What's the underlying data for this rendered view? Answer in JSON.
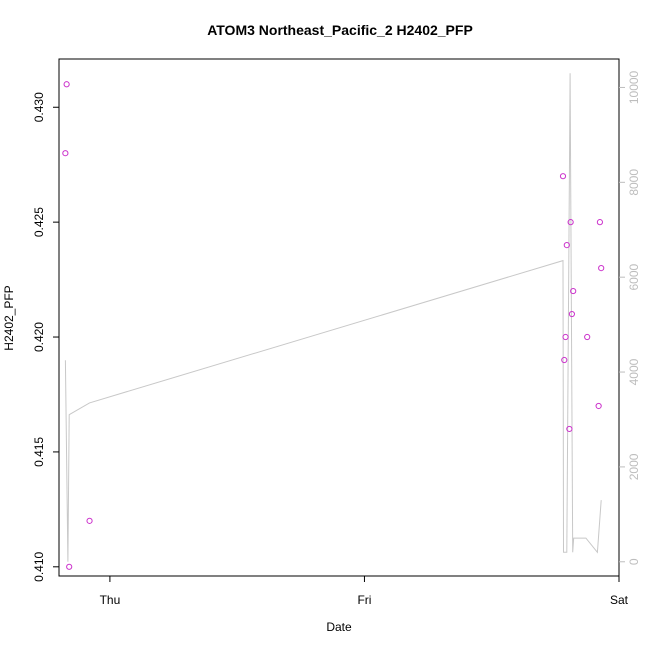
{
  "chart_data": {
    "type": "scatter",
    "title": "ATOM3 Northeast_Pacific_2 H2402_PFP",
    "xlabel": "Date",
    "ylabel": "H2402_PFP",
    "x_ticks": [
      "Thu",
      "Fri",
      "Sat"
    ],
    "x_range_days": [
      -0.2,
      2.0
    ],
    "ylim": [
      0.4096,
      0.4321
    ],
    "y_ticks": [
      0.41,
      0.415,
      0.42,
      0.425,
      0.43
    ],
    "y2lim": [
      -300,
      10600
    ],
    "y2_ticks": [
      0,
      2000,
      4000,
      6000,
      8000,
      10000
    ],
    "grid": false,
    "series": [
      {
        "type": "scatter",
        "color": "#cc33cc",
        "points": [
          {
            "x": -0.17,
            "y": 0.431
          },
          {
            "x": -0.175,
            "y": 0.428
          },
          {
            "x": -0.16,
            "y": 0.41
          },
          {
            "x": -0.08,
            "y": 0.412
          },
          {
            "x": 1.78,
            "y": 0.427
          },
          {
            "x": 1.785,
            "y": 0.419
          },
          {
            "x": 1.79,
            "y": 0.42
          },
          {
            "x": 1.795,
            "y": 0.424
          },
          {
            "x": 1.805,
            "y": 0.416
          },
          {
            "x": 1.81,
            "y": 0.425
          },
          {
            "x": 1.815,
            "y": 0.421
          },
          {
            "x": 1.82,
            "y": 0.422
          },
          {
            "x": 1.875,
            "y": 0.42
          },
          {
            "x": 1.92,
            "y": 0.417
          },
          {
            "x": 1.925,
            "y": 0.425
          },
          {
            "x": 1.93,
            "y": 0.423
          }
        ]
      },
      {
        "type": "line",
        "color": "#c8c8c8",
        "axis": "right",
        "points": [
          {
            "x": -0.175,
            "y": 4250
          },
          {
            "x": -0.165,
            "y": 0
          },
          {
            "x": -0.16,
            "y": 3100
          },
          {
            "x": -0.08,
            "y": 3350
          },
          {
            "x": 1.78,
            "y": 6350
          },
          {
            "x": 1.782,
            "y": 200
          },
          {
            "x": 1.795,
            "y": 200
          },
          {
            "x": 1.808,
            "y": 10300
          },
          {
            "x": 1.818,
            "y": 200
          },
          {
            "x": 1.822,
            "y": 500
          },
          {
            "x": 1.87,
            "y": 500
          },
          {
            "x": 1.915,
            "y": 200
          },
          {
            "x": 1.93,
            "y": 1300
          }
        ]
      }
    ]
  }
}
